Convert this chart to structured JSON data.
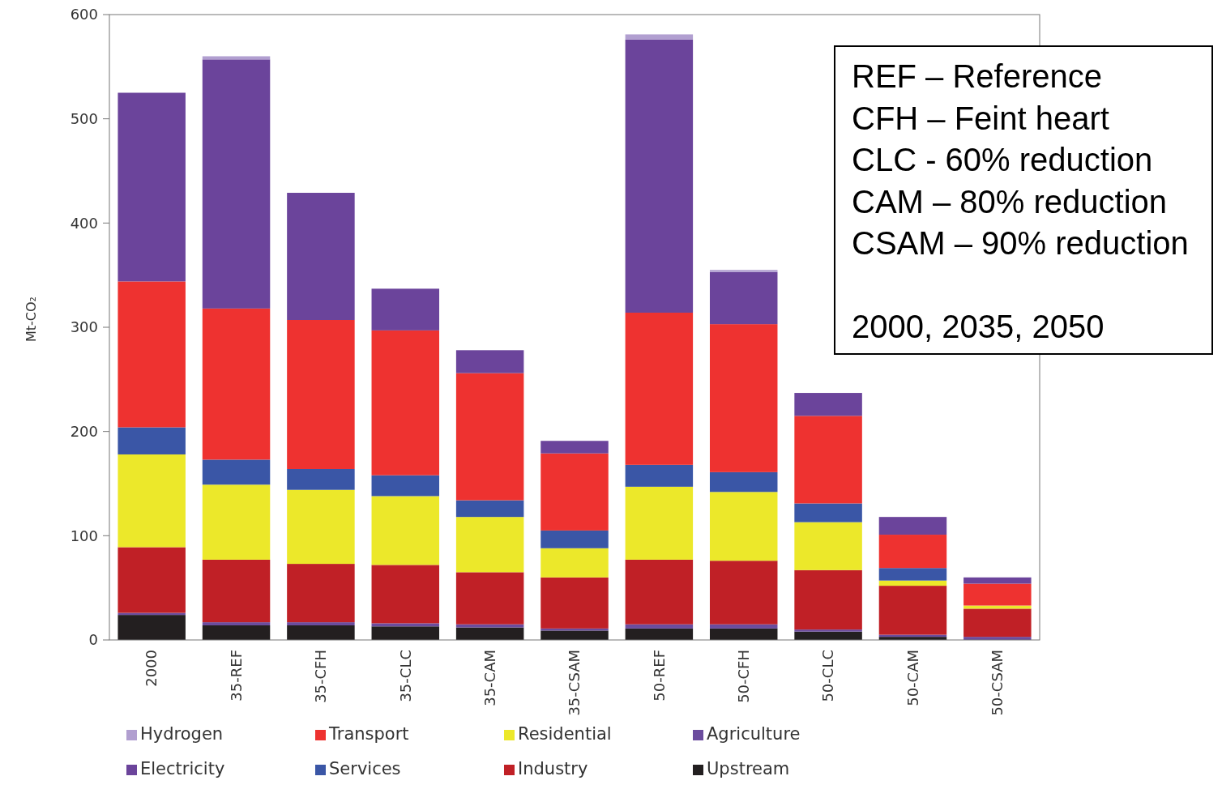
{
  "chart_data": {
    "type": "bar",
    "stacked": true,
    "ylabel": "Mt-CO₂",
    "categories": [
      "2000",
      "35-REF",
      "35-CFH",
      "35-CLC",
      "35-CAM",
      "35-CSAM",
      "50-REF",
      "50-CFH",
      "50-CLC",
      "50-CAM",
      "50-CSAM"
    ],
    "ylim": [
      0,
      600
    ],
    "yticks": [
      0,
      100,
      200,
      300,
      400,
      500,
      600
    ],
    "grid": false,
    "legend": "bottom",
    "series": [
      {
        "name": "Upstream",
        "color": "#231f20",
        "values": [
          24,
          14,
          14,
          13,
          12,
          9,
          11,
          11,
          8,
          3,
          0
        ]
      },
      {
        "name": "Agriculture",
        "color": "#6b4c9e",
        "values": [
          2,
          3,
          3,
          3,
          3,
          2,
          4,
          4,
          2,
          2,
          3
        ]
      },
      {
        "name": "Industry",
        "color": "#c02026",
        "values": [
          63,
          60,
          56,
          56,
          50,
          49,
          62,
          61,
          57,
          47,
          27
        ]
      },
      {
        "name": "Residential",
        "color": "#ece82a",
        "values": [
          89,
          72,
          71,
          66,
          53,
          28,
          70,
          66,
          46,
          5,
          3
        ]
      },
      {
        "name": "Services",
        "color": "#3a56a6",
        "values": [
          26,
          24,
          20,
          20,
          16,
          17,
          21,
          19,
          18,
          12,
          0
        ]
      },
      {
        "name": "Transport",
        "color": "#ee3230",
        "values": [
          140,
          145,
          143,
          139,
          122,
          74,
          146,
          142,
          84,
          32,
          21
        ]
      },
      {
        "name": "Electricity",
        "color": "#6b449b",
        "values": [
          181,
          239,
          122,
          40,
          22,
          12,
          262,
          50,
          22,
          17,
          6
        ]
      },
      {
        "name": "Hydrogen",
        "color": "#b19fd0",
        "values": [
          0,
          3,
          0,
          0,
          0,
          0,
          5,
          2,
          0,
          0,
          0
        ]
      }
    ],
    "annotations": [
      "REF – Reference",
      "CFH – Feint heart",
      "CLC - 60% reduction",
      "CAM – 80% reduction",
      "CSAM – 90% reduction",
      "2000, 2035, 2050"
    ]
  }
}
